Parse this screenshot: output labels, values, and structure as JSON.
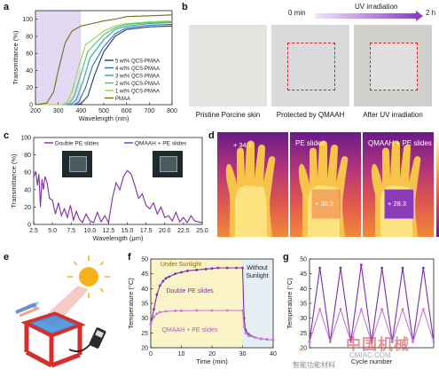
{
  "panels": {
    "a": {
      "label": "a",
      "chart_data": {
        "type": "line",
        "xlabel": "Wavelength (nm)",
        "ylabel": "Transmittance (%)",
        "xlim": [
          200,
          800
        ],
        "ylim": [
          0,
          110
        ],
        "xticks": [
          "200",
          "300",
          "400",
          "500",
          "600",
          "700",
          "800"
        ],
        "yticks": [
          "0",
          "20",
          "40",
          "60",
          "80",
          "100"
        ],
        "legend_position": "right",
        "series": [
          {
            "name": "5 wt% QCS-PMAA",
            "color": "#1f3a6e",
            "x": [
              200,
              350,
              380,
              400,
              430,
              460,
              500,
              550,
              600,
              700,
              800
            ],
            "y": [
              0,
              0,
              0,
              1,
              10,
              35,
              62,
              80,
              88,
              91,
              92
            ]
          },
          {
            "name": "4 wt% QCS-PMAA",
            "color": "#2f6fb8",
            "x": [
              200,
              350,
              370,
              390,
              420,
              450,
              500,
              550,
              600,
              700,
              800
            ],
            "y": [
              0,
              0,
              0,
              3,
              20,
              45,
              68,
              83,
              90,
              93,
              94
            ]
          },
          {
            "name": "3 wt% QCS-PMAA",
            "color": "#2aa8a0",
            "x": [
              200,
              340,
              360,
              380,
              410,
              440,
              500,
              550,
              600,
              700,
              800
            ],
            "y": [
              0,
              0,
              1,
              6,
              28,
              55,
              76,
              88,
              92,
              95,
              96
            ]
          },
          {
            "name": "2 wt% QCS-PMAA",
            "color": "#4cc36a",
            "x": [
              200,
              330,
              350,
              370,
              400,
              430,
              500,
              550,
              600,
              700,
              800
            ],
            "y": [
              0,
              0,
              2,
              10,
              36,
              62,
              82,
              90,
              94,
              96,
              97
            ]
          },
          {
            "name": "1 wt% QCS-PMAA",
            "color": "#9bd34a",
            "x": [
              200,
              320,
              340,
              360,
              390,
              420,
              500,
              550,
              600,
              700,
              800
            ],
            "y": [
              0,
              0,
              3,
              15,
              45,
              70,
              86,
              92,
              95,
              97,
              98
            ]
          },
          {
            "name": "PMAA",
            "color": "#7a6a1a",
            "x": [
              200,
              250,
              280,
              300,
              330,
              360,
              400,
              450,
              500,
              550,
              600,
              700,
              800
            ],
            "y": [
              0,
              2,
              15,
              40,
              72,
              86,
              92,
              95,
              98,
              100,
              103,
              104,
              105
            ]
          }
        ]
      }
    },
    "b": {
      "label": "b",
      "time_start": "0 min",
      "uv_label": "UV irradiation",
      "time_end": "2 h",
      "captions": [
        "Pristine Porcine skin",
        "Protected by QMAAH",
        "After UV irradiation"
      ]
    },
    "c": {
      "label": "c",
      "chart_data": {
        "type": "line",
        "xlabel": "Wavelength (μm)",
        "ylabel": "Transmittance (%)",
        "xlim": [
          2.5,
          25
        ],
        "ylim": [
          0,
          100
        ],
        "xticks": [
          "2.5",
          "5.0",
          "7.5",
          "10.0",
          "12.5",
          "15.0",
          "17.5",
          "20.0",
          "22.5",
          "25.0"
        ],
        "yticks": [
          "0",
          "20",
          "40",
          "60",
          "80",
          "100"
        ],
        "series": [
          {
            "name": "Double PE slides",
            "color": "#7b2fa8",
            "x": [
              2.5,
              2.8,
              3.0,
              3.2,
              3.4,
              3.6,
              3.8,
              4.0,
              4.3,
              4.6,
              5.0,
              5.4,
              5.8,
              6.2,
              6.6,
              7.0,
              7.4,
              7.8,
              8.2,
              8.6,
              9.0,
              9.5,
              10.0,
              10.5,
              11.0,
              11.5,
              12.0,
              12.5,
              13.0,
              13.5,
              14.0,
              14.5,
              15.0,
              15.5,
              16.0,
              16.5,
              17.0,
              17.5,
              18.0,
              18.5,
              19.0,
              19.5,
              20.0,
              20.5,
              21.0,
              21.5,
              22.0,
              22.5,
              23.0,
              23.5,
              24.0,
              24.5,
              25.0
            ],
            "y": [
              55,
              60,
              45,
              58,
              20,
              52,
              40,
              55,
              48,
              30,
              28,
              12,
              25,
              10,
              18,
              8,
              22,
              5,
              15,
              6,
              2,
              12,
              4,
              2,
              14,
              3,
              10,
              2,
              30,
              48,
              40,
              55,
              62,
              58,
              45,
              30,
              35,
              22,
              18,
              25,
              12,
              20,
              8,
              10,
              4,
              14,
              3,
              8,
              2,
              10,
              4,
              3,
              2
            ]
          },
          {
            "name": "QMAAH + PE slides",
            "color": "#7b2fa8",
            "x": [
              2.5,
              5,
              10,
              15,
              20,
              25
            ],
            "y": [
              0,
              0,
              0,
              0,
              0,
              0
            ]
          }
        ]
      }
    },
    "d": {
      "label": "d",
      "thermal": [
        {
          "label": "",
          "marker": "+ 34.1",
          "show_slide": false
        },
        {
          "label": "PE slides",
          "marker": "+ 30.2",
          "show_slide": true
        },
        {
          "label": "QMAAH + PE slides",
          "marker": "+ 28.3",
          "show_slide": true
        }
      ]
    },
    "e": {
      "label": "e"
    },
    "f": {
      "label": "f",
      "chart_data": {
        "type": "line",
        "xlabel": "Time (min)",
        "ylabel": "Temperature (°C)",
        "xlim": [
          0,
          40
        ],
        "ylim": [
          20,
          50
        ],
        "xticks": [
          "0",
          "10",
          "20",
          "30",
          "40"
        ],
        "yticks": [
          "20",
          "25",
          "30",
          "35",
          "40",
          "45",
          "50"
        ],
        "annotations": [
          "Under Sunlight",
          "Without Sunlight"
        ],
        "series": [
          {
            "name": "Double PE slides",
            "color": "#7b2fa8",
            "x": [
              0,
              1,
              2,
              3,
              4,
              5,
              6,
              8,
              10,
              12,
              15,
              18,
              20,
              22,
              25,
              28,
              30,
              30.5,
              31,
              32,
              34,
              36,
              38,
              40
            ],
            "y": [
              28,
              33,
              38,
              41,
              42.5,
              43.5,
              44,
              45,
              45.5,
              46,
              46.3,
              46.6,
              46.8,
              47,
              47,
              47,
              47,
              30,
              26,
              24.5,
              23.5,
              23,
              22.8,
              22.6
            ]
          },
          {
            "name": "QMAAH + PE slides",
            "color": "#c878d8",
            "x": [
              0,
              1,
              2,
              3,
              5,
              8,
              10,
              15,
              20,
              25,
              30,
              30.5,
              31,
              32,
              34,
              36,
              38,
              40
            ],
            "y": [
              28,
              30.5,
              31.5,
              32,
              32.3,
              32.5,
              32.5,
              32.6,
              32.6,
              32.6,
              32.6,
              27,
              25,
              24,
              23.5,
              23,
              22.8,
              22.6
            ]
          }
        ]
      }
    },
    "g": {
      "label": "g",
      "chart_data": {
        "type": "line",
        "xlabel": "Cycle number",
        "ylabel": "Temperature (°C)",
        "ylim": [
          20,
          50
        ],
        "yticks": [
          "20",
          "25",
          "30",
          "35",
          "40",
          "45",
          "50"
        ],
        "series": [
          {
            "name": "Double PE slides",
            "color": "#7b2fa8",
            "x": [
              0,
              0.5,
              1,
              1.5,
              2,
              2.5,
              3,
              3.5,
              4,
              4.5,
              5,
              5.5,
              6
            ],
            "y": [
              22,
              47,
              22,
              47,
              22,
              48,
              22,
              47,
              22,
              47,
              22,
              47,
              22
            ]
          },
          {
            "name": "QMAAH + PE slides",
            "color": "#c878d8",
            "x": [
              0,
              0.5,
              1,
              1.5,
              2,
              2.5,
              3,
              3.5,
              4,
              4.5,
              5,
              5.5,
              6
            ],
            "y": [
              22,
              33,
              22,
              33,
              22,
              33,
              22,
              33,
              22,
              33,
              22,
              33,
              22
            ]
          }
        ]
      }
    }
  },
  "watermark": {
    "text1": "智能功能材料",
    "text2": "中国机械",
    "text3": "CMIAC.COM"
  }
}
